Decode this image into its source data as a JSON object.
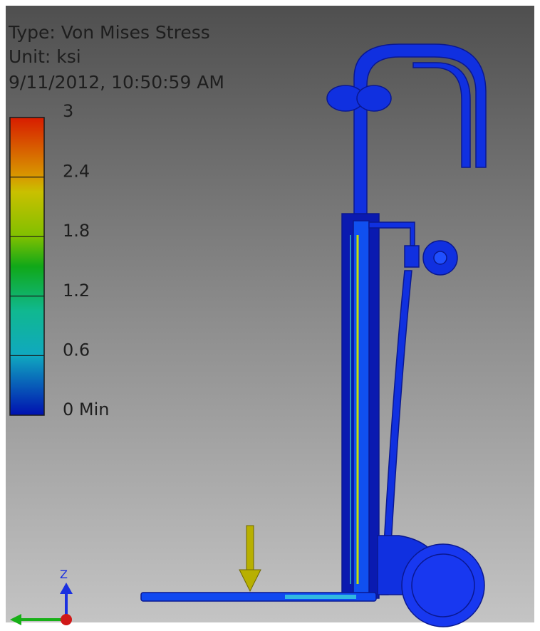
{
  "header": {
    "type_line": "Type: Von Mises Stress",
    "unit_line": "Unit: ksi",
    "timestamp": "9/11/2012, 10:50:59 AM"
  },
  "legend": {
    "labels": [
      "3",
      "2.4",
      "1.8",
      "1.2",
      "0.6",
      "0 Min"
    ]
  },
  "triad": {
    "z_label": "Z"
  }
}
